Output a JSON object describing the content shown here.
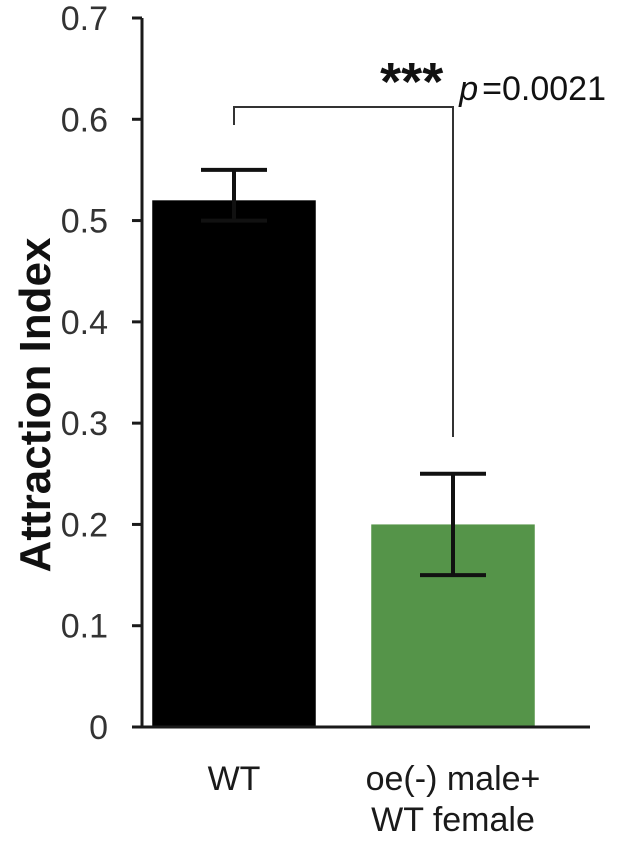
{
  "chart_data": {
    "type": "bar",
    "ylabel": "Attraction Index",
    "ylim": [
      0,
      0.7
    ],
    "yticks": [
      "0",
      "0.1",
      "0.2",
      "0.3",
      "0.4",
      "0.5",
      "0.6",
      "0.7"
    ],
    "categories": [
      [
        "WT"
      ],
      [
        "oe(-) male+",
        "WT female"
      ]
    ],
    "values": [
      0.52,
      0.2
    ],
    "errors": [
      {
        "low": 0.5,
        "high": 0.55
      },
      {
        "low": 0.15,
        "high": 0.25
      }
    ],
    "colors": [
      "#000000",
      "#559449"
    ],
    "grid": false,
    "annotation": {
      "stars": "***",
      "p_italic": "p",
      "p_value": "=0.0021"
    }
  }
}
